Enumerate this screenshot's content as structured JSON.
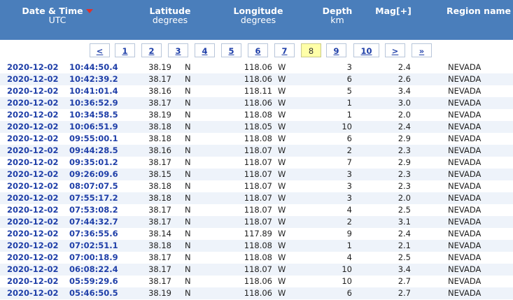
{
  "header": {
    "date_time": "Date & Time",
    "utc": "UTC",
    "latitude": "Latitude",
    "lat_unit": "degrees",
    "longitude": "Longitude",
    "lon_unit": "degrees",
    "depth": "Depth",
    "depth_unit": "km",
    "mag": "Mag[+]",
    "region": "Region name",
    "sort_color": "#e0302b"
  },
  "pager": {
    "prev": "<",
    "pages": [
      "1",
      "2",
      "3",
      "4",
      "5",
      "6",
      "7",
      "8",
      "9",
      "10"
    ],
    "active": "8",
    "next": ">",
    "last": "»"
  },
  "rows": [
    {
      "date": "2020-12-02",
      "time": "10:44:50.4",
      "lat": "38.19",
      "lat_dir": "N",
      "lon": "118.06",
      "lon_dir": "W",
      "depth": "3",
      "mag": "2.4",
      "region": "NEVADA"
    },
    {
      "date": "2020-12-02",
      "time": "10:42:39.2",
      "lat": "38.17",
      "lat_dir": "N",
      "lon": "118.06",
      "lon_dir": "W",
      "depth": "6",
      "mag": "2.6",
      "region": "NEVADA"
    },
    {
      "date": "2020-12-02",
      "time": "10:41:01.4",
      "lat": "38.16",
      "lat_dir": "N",
      "lon": "118.11",
      "lon_dir": "W",
      "depth": "5",
      "mag": "3.4",
      "region": "NEVADA"
    },
    {
      "date": "2020-12-02",
      "time": "10:36:52.9",
      "lat": "38.17",
      "lat_dir": "N",
      "lon": "118.06",
      "lon_dir": "W",
      "depth": "1",
      "mag": "3.0",
      "region": "NEVADA"
    },
    {
      "date": "2020-12-02",
      "time": "10:34:58.5",
      "lat": "38.19",
      "lat_dir": "N",
      "lon": "118.08",
      "lon_dir": "W",
      "depth": "1",
      "mag": "2.0",
      "region": "NEVADA"
    },
    {
      "date": "2020-12-02",
      "time": "10:06:51.9",
      "lat": "38.18",
      "lat_dir": "N",
      "lon": "118.05",
      "lon_dir": "W",
      "depth": "10",
      "mag": "2.4",
      "region": "NEVADA"
    },
    {
      "date": "2020-12-02",
      "time": "09:55:00.1",
      "lat": "38.18",
      "lat_dir": "N",
      "lon": "118.08",
      "lon_dir": "W",
      "depth": "6",
      "mag": "2.9",
      "region": "NEVADA"
    },
    {
      "date": "2020-12-02",
      "time": "09:44:28.5",
      "lat": "38.16",
      "lat_dir": "N",
      "lon": "118.07",
      "lon_dir": "W",
      "depth": "2",
      "mag": "2.3",
      "region": "NEVADA"
    },
    {
      "date": "2020-12-02",
      "time": "09:35:01.2",
      "lat": "38.17",
      "lat_dir": "N",
      "lon": "118.07",
      "lon_dir": "W",
      "depth": "7",
      "mag": "2.9",
      "region": "NEVADA"
    },
    {
      "date": "2020-12-02",
      "time": "09:26:09.6",
      "lat": "38.15",
      "lat_dir": "N",
      "lon": "118.07",
      "lon_dir": "W",
      "depth": "3",
      "mag": "2.3",
      "region": "NEVADA"
    },
    {
      "date": "2020-12-02",
      "time": "08:07:07.5",
      "lat": "38.18",
      "lat_dir": "N",
      "lon": "118.07",
      "lon_dir": "W",
      "depth": "3",
      "mag": "2.3",
      "region": "NEVADA"
    },
    {
      "date": "2020-12-02",
      "time": "07:55:17.2",
      "lat": "38.18",
      "lat_dir": "N",
      "lon": "118.07",
      "lon_dir": "W",
      "depth": "3",
      "mag": "2.0",
      "region": "NEVADA"
    },
    {
      "date": "2020-12-02",
      "time": "07:53:08.2",
      "lat": "38.17",
      "lat_dir": "N",
      "lon": "118.07",
      "lon_dir": "W",
      "depth": "4",
      "mag": "2.5",
      "region": "NEVADA"
    },
    {
      "date": "2020-12-02",
      "time": "07:44:32.7",
      "lat": "38.17",
      "lat_dir": "N",
      "lon": "118.07",
      "lon_dir": "W",
      "depth": "2",
      "mag": "3.1",
      "region": "NEVADA"
    },
    {
      "date": "2020-12-02",
      "time": "07:36:55.6",
      "lat": "38.14",
      "lat_dir": "N",
      "lon": "117.89",
      "lon_dir": "W",
      "depth": "9",
      "mag": "2.4",
      "region": "NEVADA"
    },
    {
      "date": "2020-12-02",
      "time": "07:02:51.1",
      "lat": "38.18",
      "lat_dir": "N",
      "lon": "118.08",
      "lon_dir": "W",
      "depth": "1",
      "mag": "2.1",
      "region": "NEVADA"
    },
    {
      "date": "2020-12-02",
      "time": "07:00:18.9",
      "lat": "38.17",
      "lat_dir": "N",
      "lon": "118.08",
      "lon_dir": "W",
      "depth": "4",
      "mag": "2.5",
      "region": "NEVADA"
    },
    {
      "date": "2020-12-02",
      "time": "06:08:22.4",
      "lat": "38.17",
      "lat_dir": "N",
      "lon": "118.07",
      "lon_dir": "W",
      "depth": "10",
      "mag": "3.4",
      "region": "NEVADA"
    },
    {
      "date": "2020-12-02",
      "time": "05:59:29.6",
      "lat": "38.17",
      "lat_dir": "N",
      "lon": "118.06",
      "lon_dir": "W",
      "depth": "10",
      "mag": "2.7",
      "region": "NEVADA"
    },
    {
      "date": "2020-12-02",
      "time": "05:46:50.5",
      "lat": "38.19",
      "lat_dir": "N",
      "lon": "118.06",
      "lon_dir": "W",
      "depth": "6",
      "mag": "2.7",
      "region": "NEVADA"
    }
  ]
}
